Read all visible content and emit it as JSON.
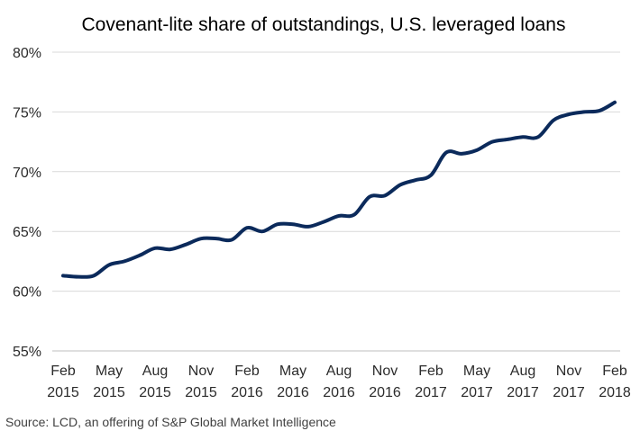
{
  "chart_data": {
    "type": "line",
    "title": "Covenant-lite share of outstandings, U.S. leveraged loans",
    "xlabel": "",
    "ylabel": "",
    "ylim": [
      55,
      80
    ],
    "y_ticks": [
      "55%",
      "60%",
      "65%",
      "70%",
      "75%",
      "80%"
    ],
    "y_tick_values": [
      55,
      60,
      65,
      70,
      75,
      80
    ],
    "x_tick_labels": [
      {
        "month": "Feb",
        "year": "2015"
      },
      {
        "month": "May",
        "year": "2015"
      },
      {
        "month": "Aug",
        "year": "2015"
      },
      {
        "month": "Nov",
        "year": "2015"
      },
      {
        "month": "Feb",
        "year": "2016"
      },
      {
        "month": "May",
        "year": "2016"
      },
      {
        "month": "Aug",
        "year": "2016"
      },
      {
        "month": "Nov",
        "year": "2016"
      },
      {
        "month": "Feb",
        "year": "2017"
      },
      {
        "month": "May",
        "year": "2017"
      },
      {
        "month": "Aug",
        "year": "2017"
      },
      {
        "month": "Nov",
        "year": "2017"
      },
      {
        "month": "Feb",
        "year": "2018"
      }
    ],
    "grid": true,
    "legend": "none",
    "series": [
      {
        "color": "#0b2a5b",
        "x": [
          "2015-02",
          "2015-03",
          "2015-04",
          "2015-05",
          "2015-06",
          "2015-07",
          "2015-08",
          "2015-09",
          "2015-10",
          "2015-11",
          "2015-12",
          "2016-01",
          "2016-02",
          "2016-03",
          "2016-04",
          "2016-05",
          "2016-06",
          "2016-07",
          "2016-08",
          "2016-09",
          "2016-10",
          "2016-11",
          "2016-12",
          "2017-01",
          "2017-02",
          "2017-03",
          "2017-04",
          "2017-05",
          "2017-06",
          "2017-07",
          "2017-08",
          "2017-09",
          "2017-10",
          "2017-11",
          "2017-12",
          "2018-01",
          "2018-02"
        ],
        "values": [
          61.3,
          61.2,
          61.3,
          62.2,
          62.5,
          63.0,
          63.6,
          63.5,
          63.9,
          64.4,
          64.4,
          64.3,
          65.3,
          65.0,
          65.6,
          65.6,
          65.4,
          65.8,
          66.3,
          66.4,
          67.9,
          68.0,
          68.9,
          69.3,
          69.7,
          71.6,
          71.5,
          71.8,
          72.5,
          72.7,
          72.9,
          72.9,
          74.3,
          74.8,
          75.0,
          75.1,
          75.8
        ]
      }
    ]
  },
  "source": "Source: LCD, an offering of S&P Global Market Intelligence"
}
